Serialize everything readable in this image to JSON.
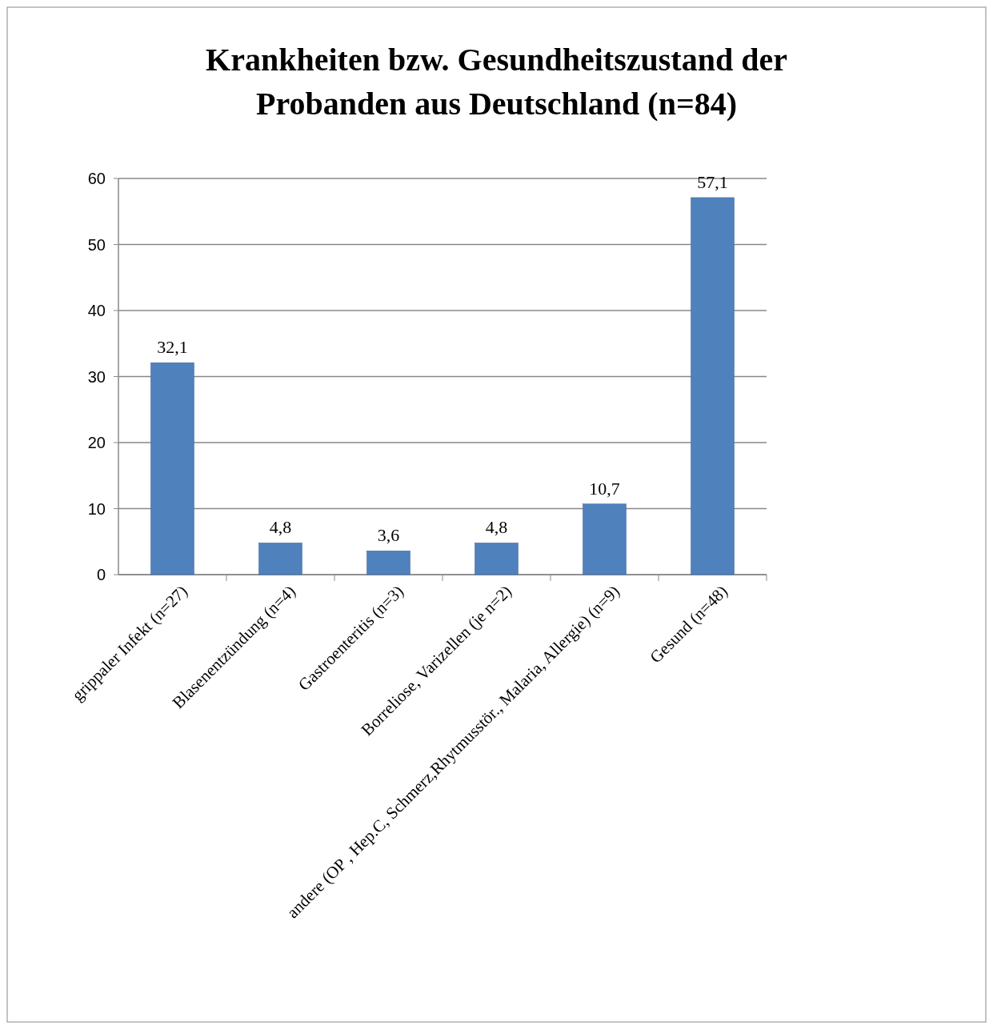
{
  "chart_data": {
    "type": "bar",
    "title": "Krankheiten bzw. Gesundheitszustand der Probanden aus Deutschland (n=84)",
    "categories": [
      "grippaler Infekt (n=27)",
      "Blasenentzündung (n=4)",
      "Gastroenteritis (n=3)",
      "Borreliose, Varizellen (je n=2)",
      "andere (OP , Hep.C, Schmerz,Rhytmusstör., Malaria, Allergie) (n=9)",
      "Gesund (n=48)"
    ],
    "values": [
      32.1,
      4.8,
      3.6,
      4.8,
      10.7,
      57.1
    ],
    "value_labels": [
      "32,1",
      "4,8",
      "3,6",
      "4,8",
      "10,7",
      "57,1"
    ],
    "color": "#4f81bd",
    "ylim": [
      0,
      60
    ],
    "yticks": [
      0,
      10,
      20,
      30,
      40,
      50,
      60
    ],
    "grid": "y"
  }
}
